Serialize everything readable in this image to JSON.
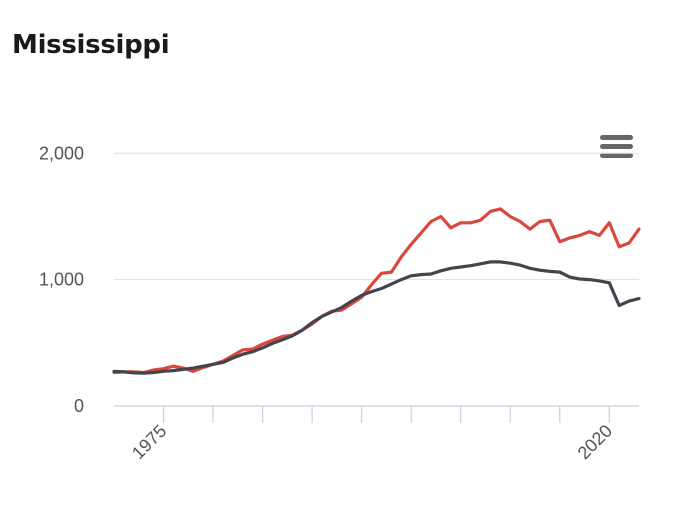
{
  "chart_data": {
    "type": "line",
    "title": "Mississippi",
    "xlabel": "",
    "ylabel": "",
    "xlim": [
      1970,
      2023
    ],
    "ylim": [
      0,
      2200
    ],
    "y_ticks": [
      0,
      1000,
      2000
    ],
    "y_tick_labels": [
      "0",
      "1,000",
      "2,000"
    ],
    "x_ticks": [
      1975,
      2020
    ],
    "x_tick_labels": [
      "1975",
      "2020"
    ],
    "grid": true,
    "legend": "none",
    "x": [
      1970,
      1971,
      1972,
      1973,
      1974,
      1975,
      1976,
      1977,
      1978,
      1979,
      1980,
      1981,
      1982,
      1983,
      1984,
      1985,
      1986,
      1987,
      1988,
      1989,
      1990,
      1991,
      1992,
      1993,
      1994,
      1995,
      1996,
      1997,
      1998,
      1999,
      2000,
      2001,
      2002,
      2003,
      2004,
      2005,
      2006,
      2007,
      2008,
      2009,
      2010,
      2011,
      2012,
      2013,
      2014,
      2015,
      2016,
      2017,
      2018,
      2019,
      2020,
      2021,
      2022,
      2023
    ],
    "series": [
      {
        "color": "#d9483b",
        "values": [
          265,
          270,
          270,
          265,
          285,
          295,
          315,
          300,
          275,
          305,
          330,
          355,
          400,
          445,
          450,
          490,
          520,
          550,
          560,
          600,
          650,
          710,
          750,
          760,
          810,
          860,
          960,
          1050,
          1060,
          1180,
          1280,
          1370,
          1460,
          1500,
          1410,
          1450,
          1450,
          1470,
          1540,
          1560,
          1500,
          1460,
          1400,
          1460,
          1470,
          1300,
          1330,
          1350,
          1380,
          1350,
          1450,
          1260,
          1290,
          1400
        ]
      },
      {
        "color": "#44444e",
        "values": [
          275,
          270,
          262,
          260,
          265,
          275,
          280,
          290,
          300,
          315,
          330,
          345,
          380,
          410,
          430,
          460,
          495,
          525,
          555,
          600,
          660,
          710,
          745,
          780,
          830,
          875,
          905,
          930,
          965,
          1000,
          1030,
          1040,
          1045,
          1070,
          1090,
          1100,
          1110,
          1125,
          1140,
          1140,
          1130,
          1115,
          1090,
          1075,
          1065,
          1060,
          1020,
          1005,
          1000,
          990,
          975,
          795,
          830,
          850
        ]
      }
    ]
  }
}
